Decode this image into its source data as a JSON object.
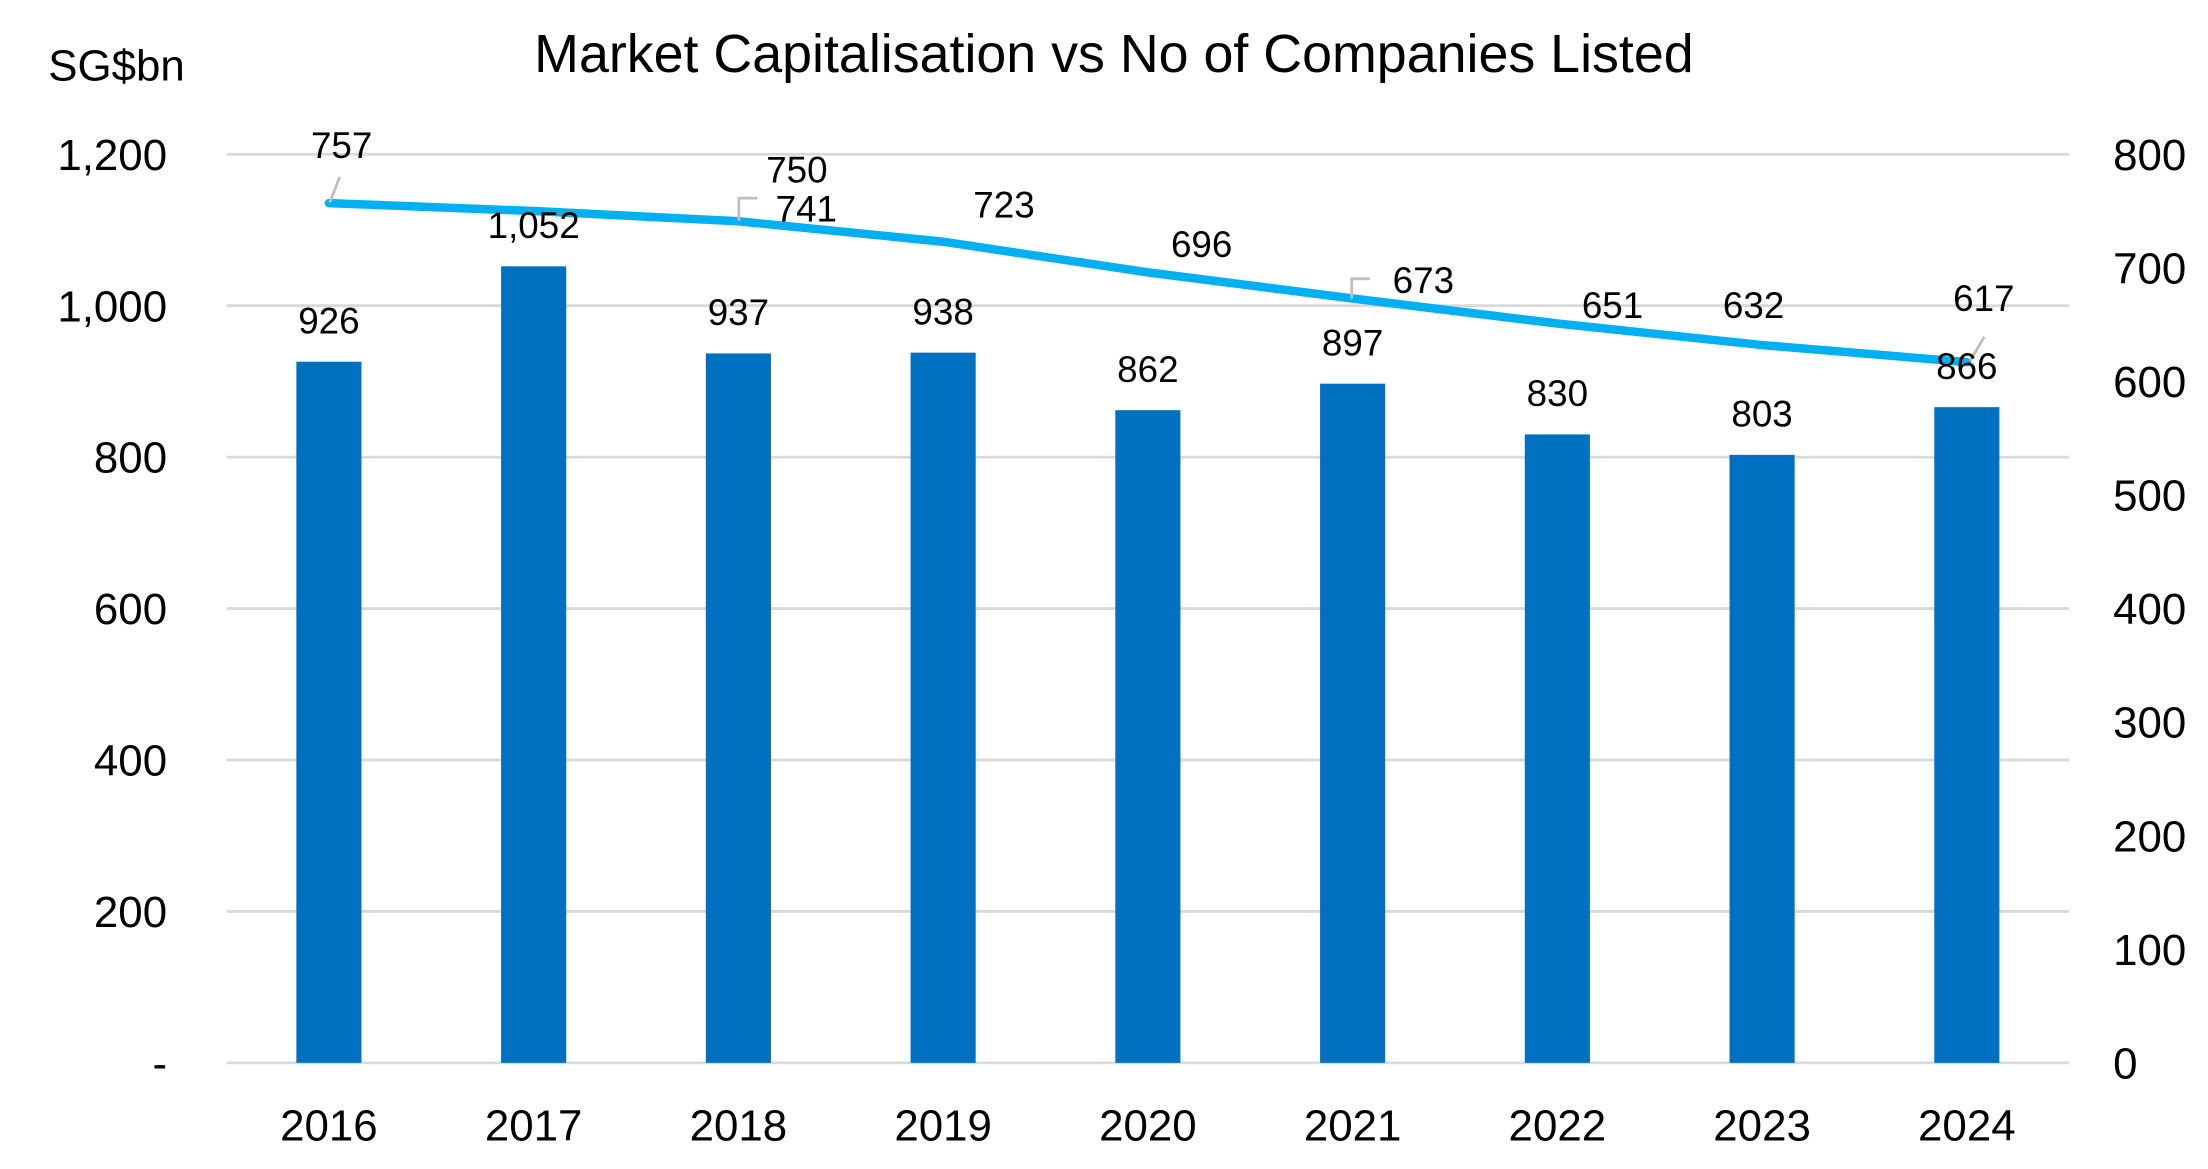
{
  "chart_data": {
    "type": "bar+line",
    "title": "Market Capitalisation vs No of Companies Listed",
    "ylabel": "SG$bn",
    "ylabel_right": "",
    "categories": [
      "2016",
      "2017",
      "2018",
      "2019",
      "2020",
      "2021",
      "2022",
      "2023",
      "2024"
    ],
    "series": [
      {
        "type": "bar",
        "axis": "left",
        "values": [
          926,
          1052,
          937,
          938,
          862,
          897,
          830,
          803,
          866
        ],
        "labels": [
          "926",
          "1,052",
          "937",
          "938",
          "862",
          "897",
          "830",
          "803",
          "866"
        ],
        "color": "#0070C0"
      },
      {
        "type": "line",
        "axis": "right",
        "values": [
          757,
          750,
          741,
          723,
          696,
          673,
          651,
          632,
          617
        ],
        "labels": [
          "757",
          "750",
          "741",
          "723",
          "696",
          "673",
          "651",
          "632",
          "617"
        ],
        "color": "#00B0F0"
      }
    ],
    "ylim": [
      0,
      1200
    ],
    "yticks": [
      "-",
      "200",
      "400",
      "600",
      "800",
      "1,000",
      "1,200"
    ],
    "ylim_right": [
      0,
      800
    ],
    "yticks_right": [
      "0",
      "100",
      "200",
      "300",
      "400",
      "500",
      "600",
      "700",
      "800"
    ],
    "grid": true,
    "legend": "none"
  }
}
